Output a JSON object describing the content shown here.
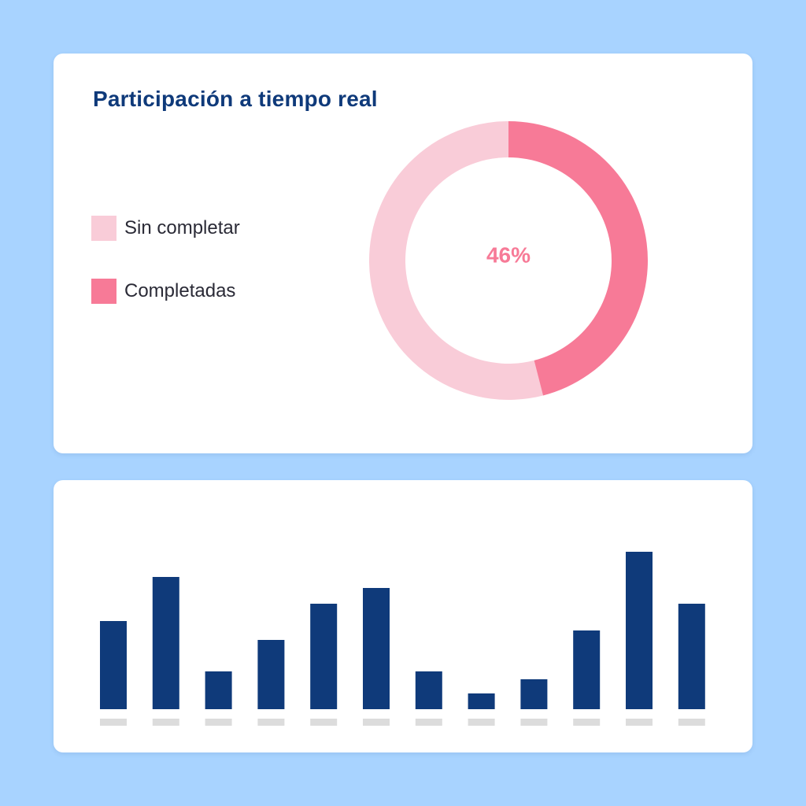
{
  "colors": {
    "background": "#a8d3ff",
    "title": "#0f3a7a",
    "completed": "#f77a97",
    "incomplete": "#f9ccd8",
    "bar": "#0f3a7a",
    "tick_placeholder": "#dcdcdc"
  },
  "participation": {
    "title": "Participación a tiempo real",
    "center_label": "46%"
  },
  "chart_data": [
    {
      "type": "pie",
      "title": "Participación a tiempo real",
      "style": "donut",
      "categories": [
        "Sin completar",
        "Completadas"
      ],
      "values": [
        54,
        46
      ],
      "legend": "left"
    },
    {
      "type": "bar",
      "values": [
        56,
        84,
        24,
        44,
        67,
        77,
        24,
        10,
        19,
        50,
        100,
        67
      ],
      "ylim": [
        0,
        100
      ],
      "grid": false
    }
  ]
}
